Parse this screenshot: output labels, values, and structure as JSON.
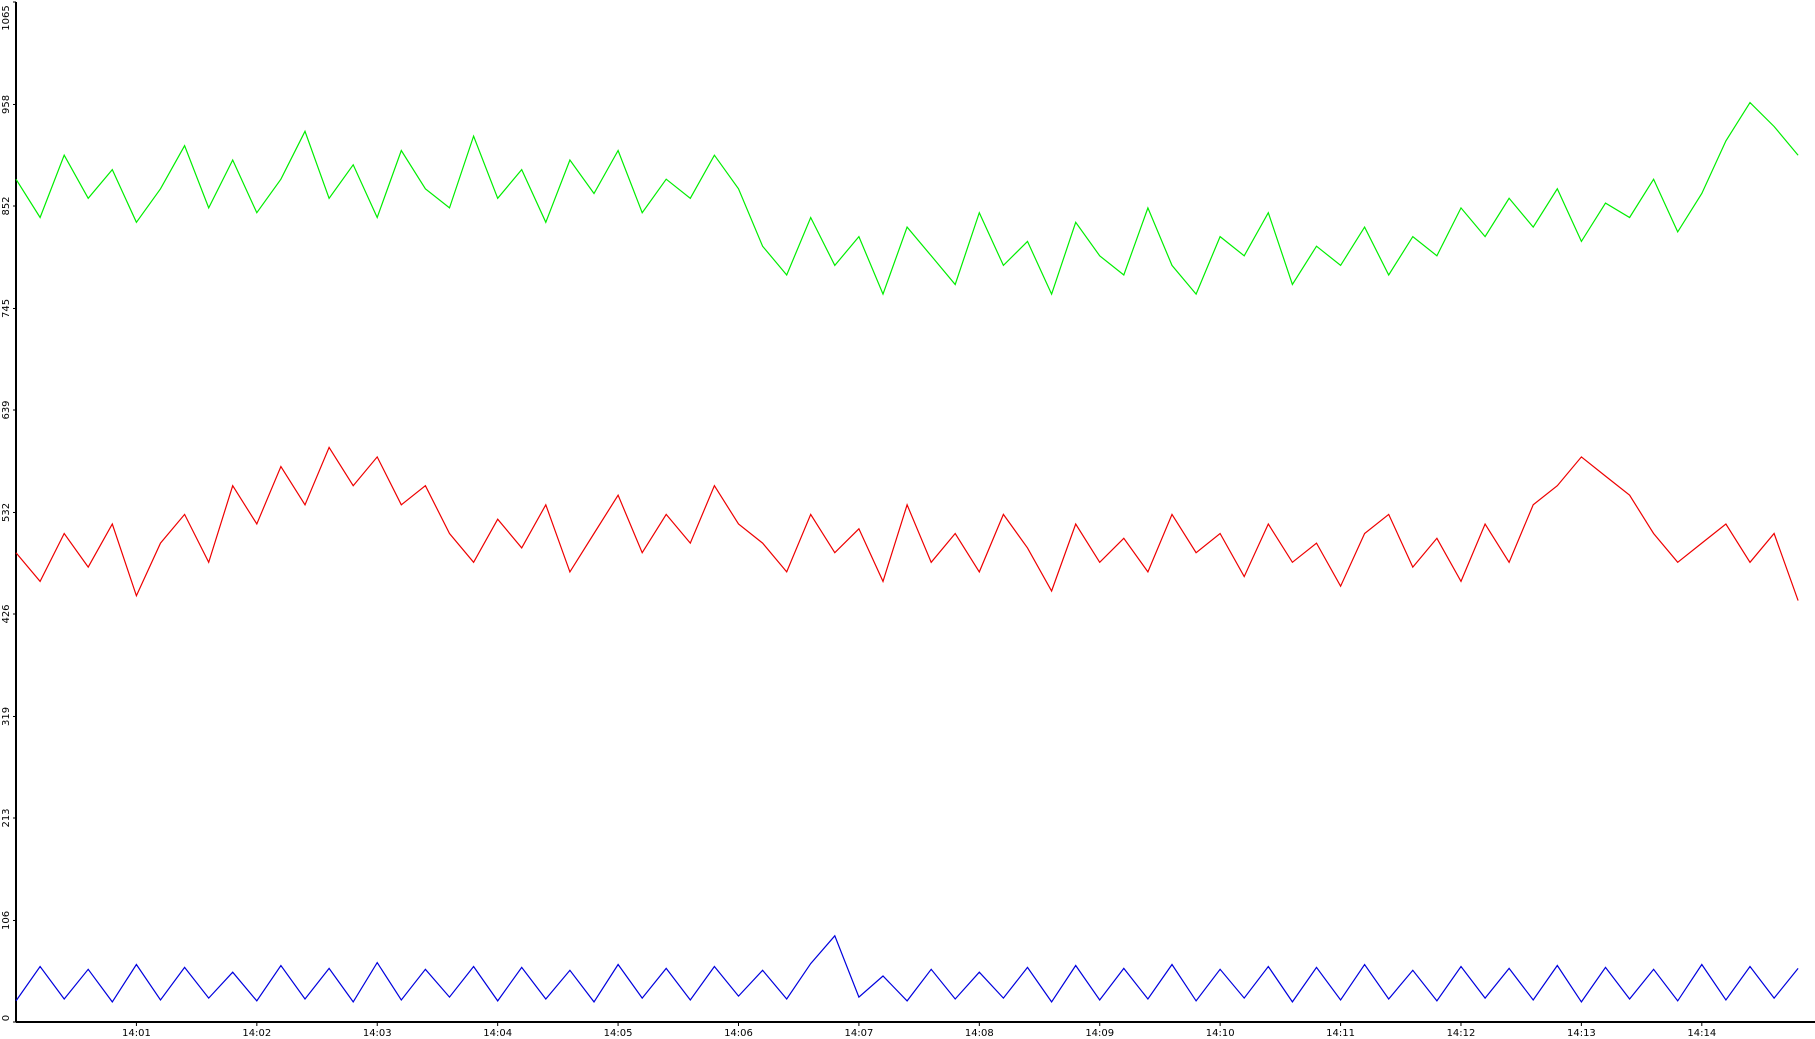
{
  "chart_data": {
    "type": "line",
    "x": [
      0,
      0.2,
      0.4,
      0.6,
      0.8,
      1,
      1.2,
      1.4,
      1.6,
      1.8,
      2,
      2.2,
      2.4,
      2.6,
      2.8,
      3,
      3.2,
      3.4,
      3.6,
      3.8,
      4,
      4.2,
      4.4,
      4.6,
      4.8,
      5,
      5.2,
      5.4,
      5.6,
      5.8,
      6,
      6.2,
      6.4,
      6.6,
      6.8,
      7,
      7.2,
      7.4,
      7.6,
      7.8,
      8,
      8.2,
      8.4,
      8.6,
      8.8,
      9,
      9.2,
      9.4,
      9.6,
      9.8,
      10,
      10.2,
      10.4,
      10.6,
      10.8,
      11,
      11.2,
      11.4,
      11.6,
      11.8,
      12,
      12.2,
      12.4,
      12.6,
      12.8,
      13,
      13.2,
      13.4,
      13.6,
      13.8,
      14,
      14.2,
      14.4,
      14.6,
      14.8
    ],
    "series": [
      {
        "color": "#00ee00",
        "values": [
          880,
          840,
          905,
          860,
          890,
          835,
          870,
          915,
          850,
          900,
          845,
          880,
          930,
          860,
          895,
          840,
          910,
          870,
          850,
          925,
          860,
          890,
          835,
          900,
          865,
          910,
          845,
          880,
          860,
          905,
          870,
          810,
          780,
          840,
          790,
          820,
          760,
          830,
          800,
          770,
          845,
          790,
          815,
          760,
          835,
          800,
          780,
          850,
          790,
          760,
          820,
          800,
          845,
          770,
          810,
          790,
          830,
          780,
          820,
          800,
          850,
          820,
          860,
          830,
          870,
          815,
          855,
          840,
          880,
          825,
          865,
          920,
          960,
          935,
          905
        ]
      },
      {
        "color": "#ee0000",
        "values": [
          490,
          460,
          510,
          475,
          520,
          445,
          500,
          530,
          480,
          560,
          520,
          580,
          540,
          600,
          560,
          590,
          540,
          560,
          510,
          480,
          525,
          495,
          540,
          470,
          510,
          550,
          490,
          530,
          500,
          560,
          520,
          500,
          470,
          530,
          490,
          515,
          460,
          540,
          480,
          510,
          470,
          530,
          495,
          450,
          520,
          480,
          505,
          470,
          530,
          490,
          510,
          465,
          520,
          480,
          500,
          455,
          510,
          530,
          475,
          505,
          460,
          520,
          480,
          540,
          560,
          590,
          570,
          550,
          510,
          480,
          500,
          520,
          480,
          510,
          440
        ]
      },
      {
        "color": "#0000dd",
        "values": [
          22,
          58,
          24,
          55,
          21,
          60,
          23,
          57,
          25,
          52,
          22,
          59,
          24,
          56,
          21,
          62,
          23,
          55,
          26,
          58,
          22,
          57,
          24,
          54,
          21,
          60,
          25,
          56,
          23,
          58,
          27,
          54,
          24,
          61,
          90,
          26,
          48,
          22,
          55,
          24,
          52,
          25,
          57,
          21,
          59,
          23,
          56,
          24,
          60,
          22,
          55,
          25,
          58,
          21,
          57,
          23,
          60,
          24,
          54,
          22,
          58,
          25,
          56,
          23,
          59,
          21,
          57,
          24,
          55,
          22,
          60,
          23,
          58,
          25,
          56
        ]
      }
    ],
    "xlim": [
      0,
      14.94
    ],
    "xticks": [
      {
        "value": 1,
        "label": "14:01"
      },
      {
        "value": 2,
        "label": "14:02"
      },
      {
        "value": 3,
        "label": "14:03"
      },
      {
        "value": 4,
        "label": "14:04"
      },
      {
        "value": 5,
        "label": "14:05"
      },
      {
        "value": 6,
        "label": "14:06"
      },
      {
        "value": 7,
        "label": "14:07"
      },
      {
        "value": 8,
        "label": "14:08"
      },
      {
        "value": 9,
        "label": "14:09"
      },
      {
        "value": 10,
        "label": "14:10"
      },
      {
        "value": 11,
        "label": "14:11"
      },
      {
        "value": 12,
        "label": "14:12"
      },
      {
        "value": 13,
        "label": "14:13"
      },
      {
        "value": 14,
        "label": "14:14"
      }
    ],
    "ylim": [
      0,
      1065
    ],
    "yticks": [
      0,
      106,
      213,
      319,
      426,
      532,
      639,
      745,
      852,
      958,
      1065
    ]
  }
}
